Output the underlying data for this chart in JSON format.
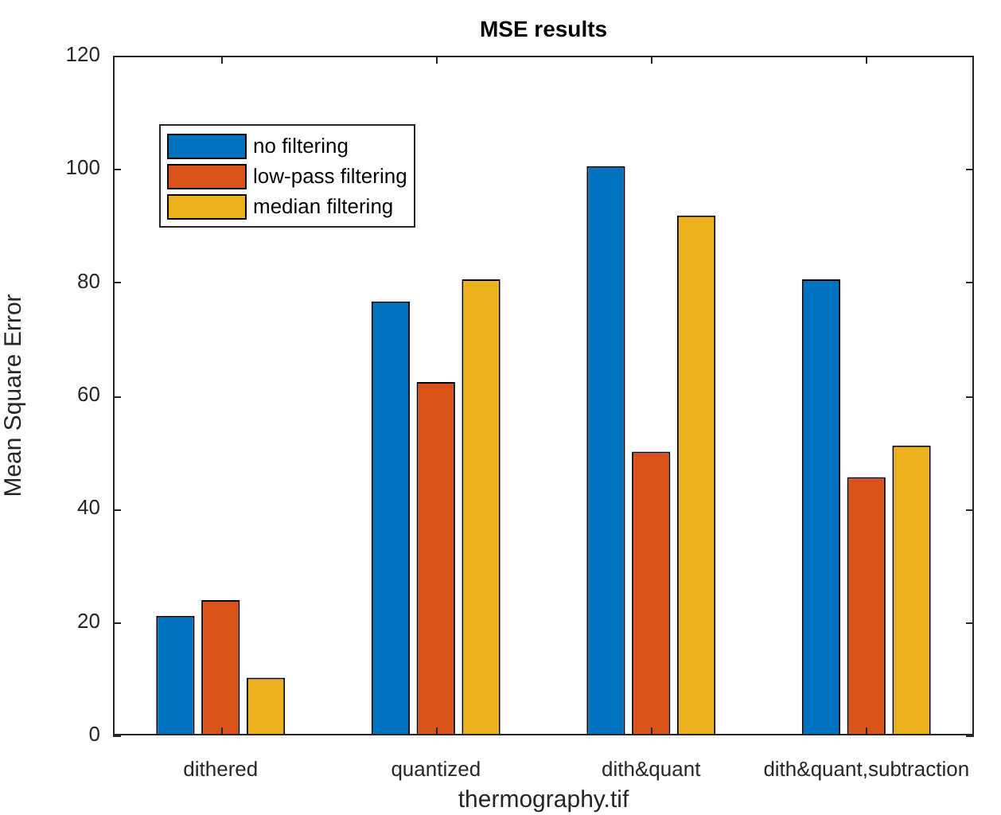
{
  "chart_data": {
    "type": "bar",
    "title": "MSE results",
    "xlabel": "thermography.tif",
    "ylabel": "Mean Square Error",
    "categories": [
      "dithered",
      "quantized",
      "dith&quant",
      "dith&quant,subtraction"
    ],
    "series": [
      {
        "name": "no filtering",
        "color": "#0072bd",
        "values": [
          21.1,
          76.6,
          100.5,
          80.5
        ]
      },
      {
        "name": "low-pass filtering",
        "color": "#d95319",
        "values": [
          23.9,
          62.4,
          50.1,
          45.6
        ]
      },
      {
        "name": "median filtering",
        "color": "#edb120",
        "values": [
          10.2,
          80.5,
          91.8,
          51.2
        ]
      }
    ],
    "ylim": [
      0,
      120
    ],
    "yticks": [
      0,
      20,
      40,
      60,
      80,
      100,
      120
    ],
    "grid": false,
    "legend": "top left"
  }
}
